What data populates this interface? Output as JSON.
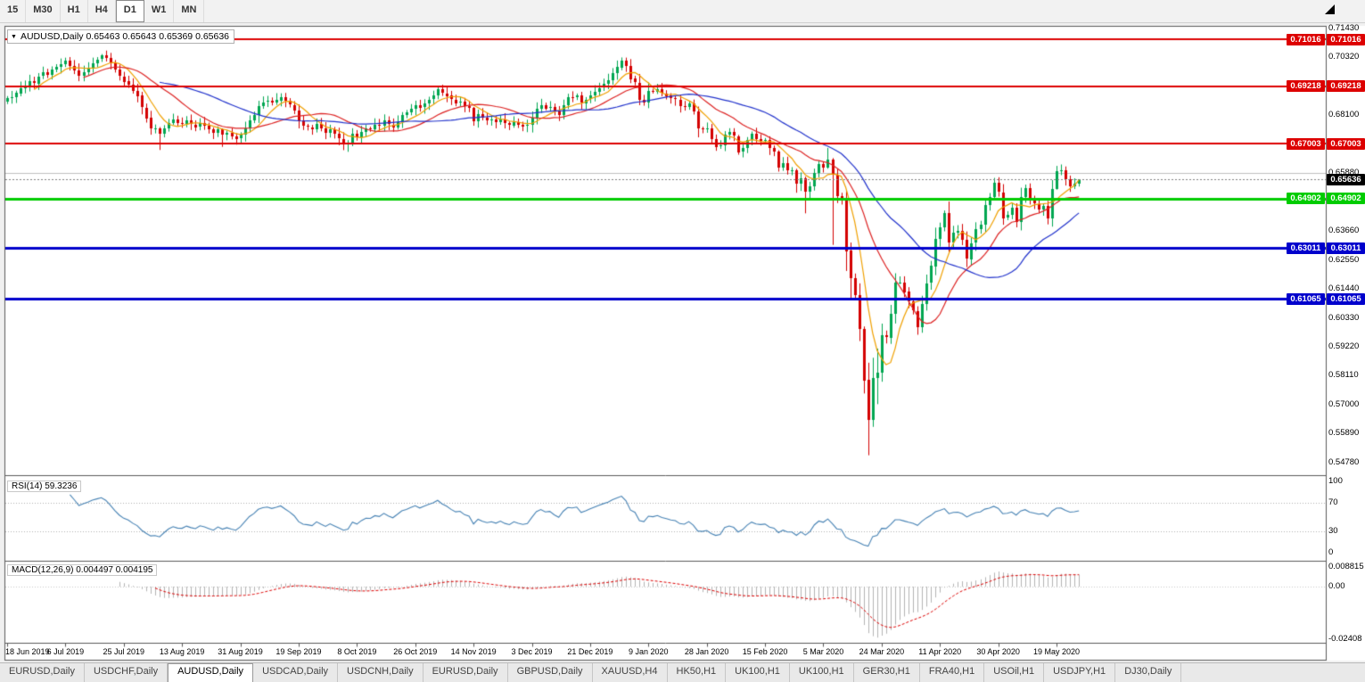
{
  "window_title": "AUDUSD,Daily",
  "toolbar": {
    "timeframes": [
      "15",
      "M30",
      "H1",
      "H4",
      "D1",
      "W1",
      "MN"
    ],
    "active": "D1"
  },
  "title_box": {
    "text": "AUDUSD,Daily 0.65463 0.65643 0.65369 0.65636"
  },
  "rsi_panel": {
    "label": "RSI(14) 59.3236",
    "axis_labels": [
      "100",
      "70",
      "30",
      "0"
    ],
    "axis_values": [
      100,
      70,
      30,
      0
    ],
    "level_lines": [
      70,
      30
    ],
    "line_color": "#4682b4"
  },
  "macd_panel": {
    "label": "MACD(12,26,9) 0.004497 0.004195",
    "axis_labels": [
      "0.008815",
      "0.00",
      "-0.02408"
    ],
    "axis_values": [
      0.008815,
      0,
      -0.02408
    ],
    "hist_color": "#b4b4b4",
    "signal_color": "#dd0000"
  },
  "tabs": [
    "EURUSD,Daily",
    "USDCHF,Daily",
    "AUDUSD,Daily",
    "USDCAD,Daily",
    "USDCNH,Daily",
    "EURUSD,Daily",
    "GBPUSD,Daily",
    "XAUUSD,H4",
    "HK50,H1",
    "UK100,H1",
    "UK100,H1",
    "GER30,H1",
    "FRA40,H1",
    "USOil,H1",
    "USDJPY,H1",
    "DJ30,Daily"
  ],
  "active_tab_index": 2,
  "chart_data": {
    "type": "candlestick",
    "title": "AUDUSD,Daily",
    "symbol": "AUDUSD",
    "timeframe": "Daily",
    "current_bar": {
      "open": 0.65463,
      "high": 0.65643,
      "low": 0.65369,
      "close": 0.65636
    },
    "current_price_label": "0.65636",
    "ylim": [
      0.5437,
      0.7147
    ],
    "price_axis_labels": [
      "0.71430",
      "0.70320",
      "0.69210",
      "0.68100",
      "0.66990",
      "0.65880",
      "0.64770",
      "0.63660",
      "0.62550",
      "0.61440",
      "0.60330",
      "0.59220",
      "0.58110",
      "0.57000",
      "0.55890",
      "0.54780"
    ],
    "date_labels": [
      "18 Jun 2019",
      "6 Jul 2019",
      "25 Jul 2019",
      "13 Aug 2019",
      "31 Aug 2019",
      "19 Sep 2019",
      "8 Oct 2019",
      "26 Oct 2019",
      "14 Nov 2019",
      "3 Dec 2019",
      "21 Dec 2019",
      "9 Jan 2020",
      "28 Jan 2020",
      "15 Feb 2020",
      "5 Mar 2020",
      "24 Mar 2020",
      "11 Apr 2020",
      "30 Apr 2020",
      "19 May 2020"
    ],
    "date_label_step": 13,
    "bull_color": "#00a651",
    "bear_color": "#d40000",
    "first_open": 0.6862,
    "closes": [
      0.6876,
      0.688,
      0.6896,
      0.6915,
      0.6924,
      0.694,
      0.6932,
      0.696,
      0.6975,
      0.6966,
      0.6985,
      0.6995,
      0.7005,
      0.702,
      0.7,
      0.6982,
      0.696,
      0.6975,
      0.699,
      0.701,
      0.7025,
      0.704,
      0.703,
      0.701,
      0.6985,
      0.696,
      0.694,
      0.6928,
      0.6905,
      0.6885,
      0.684,
      0.68,
      0.6758,
      0.676,
      0.6738,
      0.676,
      0.6782,
      0.6795,
      0.678,
      0.6778,
      0.679,
      0.6775,
      0.6765,
      0.678,
      0.677,
      0.6755,
      0.674,
      0.6755,
      0.6735,
      0.6742,
      0.673,
      0.672,
      0.6735,
      0.676,
      0.679,
      0.681,
      0.6845,
      0.686,
      0.6865,
      0.6858,
      0.6868,
      0.688,
      0.6865,
      0.685,
      0.683,
      0.679,
      0.677,
      0.6765,
      0.6758,
      0.6778,
      0.676,
      0.6742,
      0.6755,
      0.6738,
      0.672,
      0.67,
      0.6705,
      0.674,
      0.6725,
      0.6745,
      0.676,
      0.6758,
      0.6775,
      0.677,
      0.679,
      0.6775,
      0.6765,
      0.6785,
      0.681,
      0.682,
      0.6835,
      0.685,
      0.684,
      0.6855,
      0.687,
      0.6885,
      0.691,
      0.6895,
      0.6885,
      0.687,
      0.6858,
      0.6862,
      0.6845,
      0.6838,
      0.6788,
      0.6815,
      0.68,
      0.679,
      0.6795,
      0.6785,
      0.6795,
      0.678,
      0.6772,
      0.6785,
      0.6775,
      0.6768,
      0.6772,
      0.68,
      0.6835,
      0.685,
      0.6838,
      0.6842,
      0.6825,
      0.6812,
      0.685,
      0.688,
      0.6878,
      0.6885,
      0.6858,
      0.687,
      0.6885,
      0.69,
      0.6915,
      0.693,
      0.6945,
      0.6972,
      0.6995,
      0.7021,
      0.7,
      0.695,
      0.6935,
      0.687,
      0.686,
      0.6905,
      0.69,
      0.691,
      0.6895,
      0.6885,
      0.6875,
      0.687,
      0.6845,
      0.684,
      0.6855,
      0.6825,
      0.676,
      0.6755,
      0.676,
      0.672,
      0.669,
      0.6695,
      0.6735,
      0.6745,
      0.673,
      0.667,
      0.6685,
      0.6715,
      0.6738,
      0.6718,
      0.6712,
      0.6715,
      0.6685,
      0.6672,
      0.6612,
      0.6628,
      0.66,
      0.66,
      0.6547,
      0.6568,
      0.6515,
      0.6537,
      0.6589,
      0.6623,
      0.6609,
      0.6639,
      0.6583,
      0.65,
      0.6488,
      0.6291,
      0.6185,
      0.6121,
      0.5991,
      0.5794,
      0.564,
      0.5801,
      0.5823,
      0.5966,
      0.5958,
      0.6049,
      0.6168,
      0.617,
      0.6133,
      0.6095,
      0.606,
      0.5999,
      0.6087,
      0.6166,
      0.6232,
      0.6337,
      0.638,
      0.6436,
      0.6323,
      0.636,
      0.6366,
      0.6332,
      0.626,
      0.632,
      0.6372,
      0.639,
      0.6465,
      0.6495,
      0.655,
      0.6515,
      0.6416,
      0.6427,
      0.6456,
      0.64,
      0.6496,
      0.6531,
      0.6485,
      0.647,
      0.645,
      0.6462,
      0.6415,
      0.6527,
      0.6596,
      0.66,
      0.6565,
      0.6538,
      0.6547,
      0.6564
    ],
    "overrides": {
      "21": [
        0.7025,
        0.7045,
        0.7015,
        0.704
      ],
      "34": [
        0.676,
        0.6765,
        0.6677,
        0.6738
      ],
      "48": [
        0.6755,
        0.676,
        0.6689,
        0.6735
      ],
      "60": [
        0.6858,
        0.6895,
        0.685,
        0.6868
      ],
      "76": [
        0.67,
        0.6715,
        0.667,
        0.6705
      ],
      "104": [
        0.6838,
        0.6842,
        0.677,
        0.6788
      ],
      "137": [
        0.6995,
        0.7032,
        0.6983,
        0.7021
      ],
      "163": [
        0.673,
        0.6735,
        0.6659,
        0.667
      ],
      "172": [
        0.6672,
        0.6676,
        0.6594,
        0.6612
      ],
      "176": [
        0.66,
        0.6605,
        0.6513,
        0.6547
      ],
      "178": [
        0.6568,
        0.6575,
        0.6434,
        0.6515
      ],
      "183": [
        0.6609,
        0.6685,
        0.6605,
        0.6639
      ],
      "184": [
        0.6639,
        0.6646,
        0.6313,
        0.6583
      ],
      "187": [
        0.6488,
        0.652,
        0.6213,
        0.6291
      ],
      "188": [
        0.6291,
        0.6322,
        0.6107,
        0.6185
      ],
      "191": [
        0.5991,
        0.6,
        0.5743,
        0.5794
      ],
      "192": [
        0.5794,
        0.5861,
        0.5506,
        0.564
      ],
      "193": [
        0.564,
        0.588,
        0.5615,
        0.5801
      ],
      "194": [
        0.5801,
        0.5915,
        0.5702,
        0.5823
      ],
      "209": [
        0.638,
        0.6445,
        0.6365,
        0.6436
      ],
      "220": [
        0.6495,
        0.657,
        0.649,
        0.655
      ],
      "234": [
        0.6527,
        0.6616,
        0.6525,
        0.6596
      ],
      "239": [
        0.65463,
        0.65643,
        0.65369,
        0.65636
      ]
    },
    "moving_averages": [
      {
        "type": "sma",
        "period": 7,
        "color": "#f0a000"
      },
      {
        "type": "sma",
        "period": 18,
        "color": "#dd2222"
      },
      {
        "type": "sma",
        "period": 35,
        "color": "#2233cc"
      }
    ],
    "levels": [
      {
        "price": 0.71016,
        "label": "0.71016",
        "color": "#dd0000",
        "width": 2,
        "role": "resistance"
      },
      {
        "price": 0.69218,
        "label": "0.69218",
        "color": "#dd0000",
        "width": 2,
        "role": "resistance"
      },
      {
        "price": 0.67003,
        "label": "0.67003",
        "color": "#dd0000",
        "width": 2,
        "role": "resistance"
      },
      {
        "price": 0.64902,
        "label": "0.64902",
        "color": "#00cc00",
        "width": 3,
        "role": "support"
      },
      {
        "price": 0.63011,
        "label": "0.63011",
        "color": "#0000cc",
        "width": 3,
        "role": "support"
      },
      {
        "price": 0.61065,
        "label": "0.61065",
        "color": "#0000cc",
        "width": 3,
        "role": "support"
      }
    ],
    "extra_lines": [
      {
        "price": 0.6589,
        "color": "#c0c0c0",
        "width": 1
      }
    ],
    "current_price_line": {
      "price": 0.65636,
      "label": "0.65636",
      "color": "#808080",
      "badge_color": "#000000"
    },
    "rsi": {
      "period": 14,
      "current": 59.3236
    },
    "macd": {
      "fast": 12,
      "slow": 26,
      "signal": 9,
      "current_main": 0.004497,
      "current_signal": 0.004195
    }
  }
}
